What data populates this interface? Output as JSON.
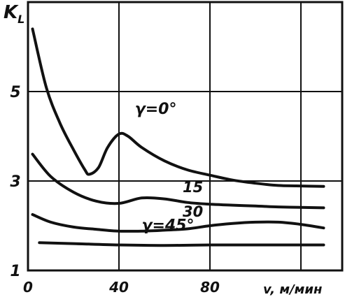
{
  "chart_data": {
    "type": "line",
    "ylabel": "K",
    "ylabel_sub": "L",
    "xlabel": "v, м/мин",
    "xlim": [
      0,
      140
    ],
    "ylim": [
      1,
      7
    ],
    "x_ticks": [
      {
        "value": 0,
        "label": "0"
      },
      {
        "value": 40,
        "label": "40"
      },
      {
        "value": 80,
        "label": "80"
      }
    ],
    "y_ticks": [
      {
        "value": 1,
        "label": "1"
      },
      {
        "value": 3,
        "label": "3"
      },
      {
        "value": 5,
        "label": "5"
      }
    ],
    "x_grid": [
      0,
      40,
      80,
      120
    ],
    "y_grid": [
      1,
      3,
      5,
      7
    ],
    "grid": true,
    "series": [
      {
        "label": "γ=0°",
        "x": [
          2,
          8,
          14,
          20,
          25,
          27,
          31,
          35,
          40,
          44,
          50,
          60,
          70,
          80,
          90,
          100,
          110,
          118,
          130
        ],
        "y": [
          6.4,
          5.1,
          4.3,
          3.7,
          3.25,
          3.15,
          3.3,
          3.75,
          4.05,
          4.0,
          3.75,
          3.45,
          3.25,
          3.13,
          3.02,
          2.95,
          2.9,
          2.89,
          2.88
        ]
      },
      {
        "label": "15",
        "x": [
          2,
          10,
          20,
          30,
          40,
          50,
          60,
          70,
          80,
          90,
          100,
          110,
          120,
          130
        ],
        "y": [
          3.6,
          3.1,
          2.75,
          2.55,
          2.5,
          2.62,
          2.6,
          2.52,
          2.48,
          2.46,
          2.44,
          2.42,
          2.41,
          2.4
        ]
      },
      {
        "label": "30",
        "x": [
          2,
          10,
          20,
          30,
          40,
          50,
          60,
          70,
          80,
          90,
          100,
          110,
          120,
          130
        ],
        "y": [
          2.25,
          2.08,
          1.97,
          1.92,
          1.88,
          1.88,
          1.9,
          1.93,
          2.0,
          2.05,
          2.08,
          2.08,
          2.03,
          1.95
        ]
      },
      {
        "label": "γ=45°",
        "x": [
          5,
          20,
          40,
          60,
          80,
          100,
          120,
          130
        ],
        "y": [
          1.62,
          1.6,
          1.57,
          1.56,
          1.57,
          1.57,
          1.57,
          1.57
        ]
      }
    ]
  }
}
